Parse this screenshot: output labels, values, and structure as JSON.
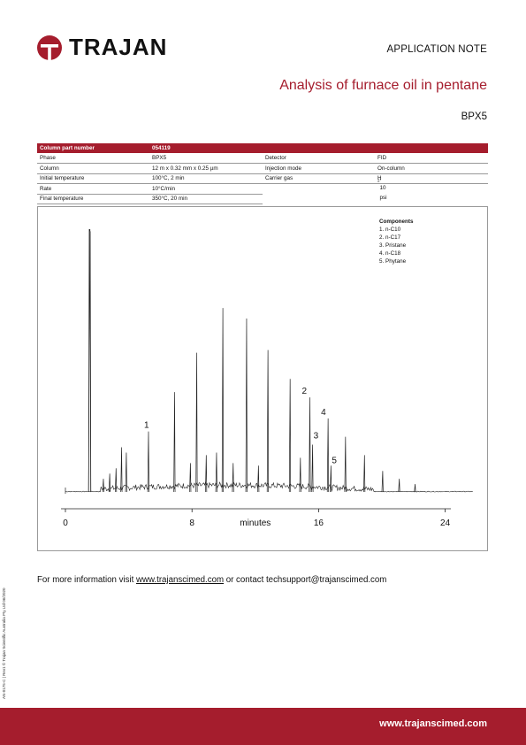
{
  "header": {
    "brand": "TRAJAN",
    "doc_type": "APPLICATION NOTE",
    "title": "Analysis of furnace oil in pentane",
    "column_name": "BPX5",
    "brand_color": "#a51d2d"
  },
  "params": {
    "left": [
      {
        "label": "Column part number",
        "value": "054119"
      },
      {
        "label": "Phase",
        "value": "BPX5"
      },
      {
        "label": "Column",
        "value": "12 m x 0.32 mm x 0.25 µm"
      },
      {
        "label": "Initial temperature",
        "value": "100°C, 2 min"
      },
      {
        "label": "Rate",
        "value": "10°C/min"
      },
      {
        "label": "Final temperature",
        "value": "350°C, 20 min"
      }
    ],
    "right": [
      {
        "label": "Detector",
        "value": "FID"
      },
      {
        "label": "Injection mode",
        "value": "On-column"
      },
      {
        "label": "Carrier gas",
        "value_main": "H",
        "value_sub": "2",
        "value_rest": ", 10 psi"
      }
    ]
  },
  "chart_data": {
    "type": "line",
    "xlabel": "minutes",
    "x_ticks": [
      0,
      8,
      16,
      24
    ],
    "xlim": [
      0,
      26
    ],
    "solvent_peak_time": 1.45,
    "peaks": [
      {
        "t": 1.55,
        "h": 100
      },
      {
        "t": 2.4,
        "h": 5
      },
      {
        "t": 2.8,
        "h": 7
      },
      {
        "t": 3.2,
        "h": 9
      },
      {
        "t": 3.55,
        "h": 17
      },
      {
        "t": 3.85,
        "h": 15
      },
      {
        "t": 5.25,
        "h": 23,
        "label": "1"
      },
      {
        "t": 6.9,
        "h": 38
      },
      {
        "t": 7.9,
        "h": 11
      },
      {
        "t": 8.3,
        "h": 53
      },
      {
        "t": 8.9,
        "h": 14
      },
      {
        "t": 9.55,
        "h": 15
      },
      {
        "t": 9.95,
        "h": 70
      },
      {
        "t": 10.6,
        "h": 11
      },
      {
        "t": 11.45,
        "h": 66
      },
      {
        "t": 12.2,
        "h": 10
      },
      {
        "t": 12.8,
        "h": 54
      },
      {
        "t": 14.2,
        "h": 43
      },
      {
        "t": 14.85,
        "h": 13
      },
      {
        "t": 15.45,
        "h": 36,
        "label": "2"
      },
      {
        "t": 15.62,
        "h": 18,
        "label": "3"
      },
      {
        "t": 16.6,
        "h": 28,
        "label": "4"
      },
      {
        "t": 16.78,
        "h": 10,
        "label": "5"
      },
      {
        "t": 17.7,
        "h": 21
      },
      {
        "t": 18.9,
        "h": 14
      },
      {
        "t": 20.05,
        "h": 8
      },
      {
        "t": 21.1,
        "h": 5
      },
      {
        "t": 22.1,
        "h": 3
      }
    ],
    "legend": {
      "title": "Components",
      "items": [
        "1.   n-C10",
        "2.   n-C17",
        "3.   Pristane",
        "4.   n-C18",
        "5.   Phytane"
      ]
    }
  },
  "footer": {
    "note_prefix": "For more information visit ",
    "note_link": "www.trajanscimed.com",
    "note_mid": " or contact ",
    "note_email": "techsupport@trajanscimed.com",
    "url": "www.trajanscimed.com",
    "side_code": "AN-0175-C | Rev1 © Trajan Scientific Australia Pty Ltd 06/2020"
  }
}
